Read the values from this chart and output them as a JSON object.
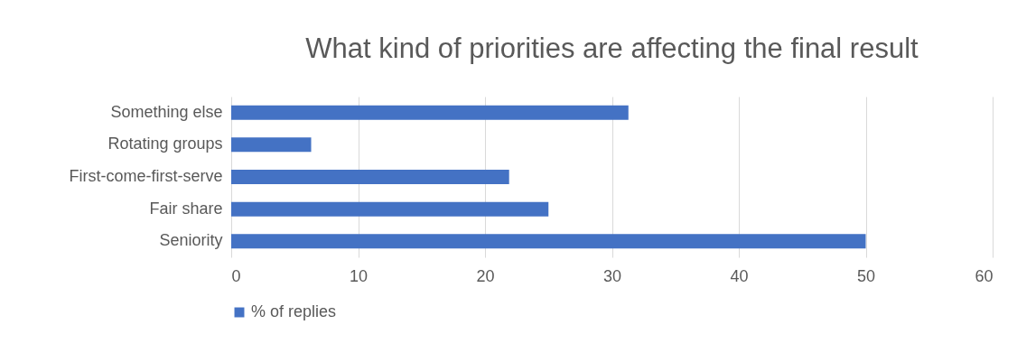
{
  "chart_data": {
    "type": "bar",
    "orientation": "horizontal",
    "title": "What kind of priorities are affecting the final result",
    "categories": [
      "Something else",
      "Rotating groups",
      "First-come-first-serve",
      "Fair share",
      "Seniority"
    ],
    "series": [
      {
        "name": "% of replies",
        "color": "#4472c4",
        "values": [
          31.3,
          6.3,
          21.9,
          25,
          50
        ]
      }
    ],
    "xlim": [
      0,
      60
    ],
    "xticks": [
      0,
      10,
      20,
      30,
      40,
      50,
      60
    ],
    "grid": "x",
    "legend": "bottom"
  }
}
